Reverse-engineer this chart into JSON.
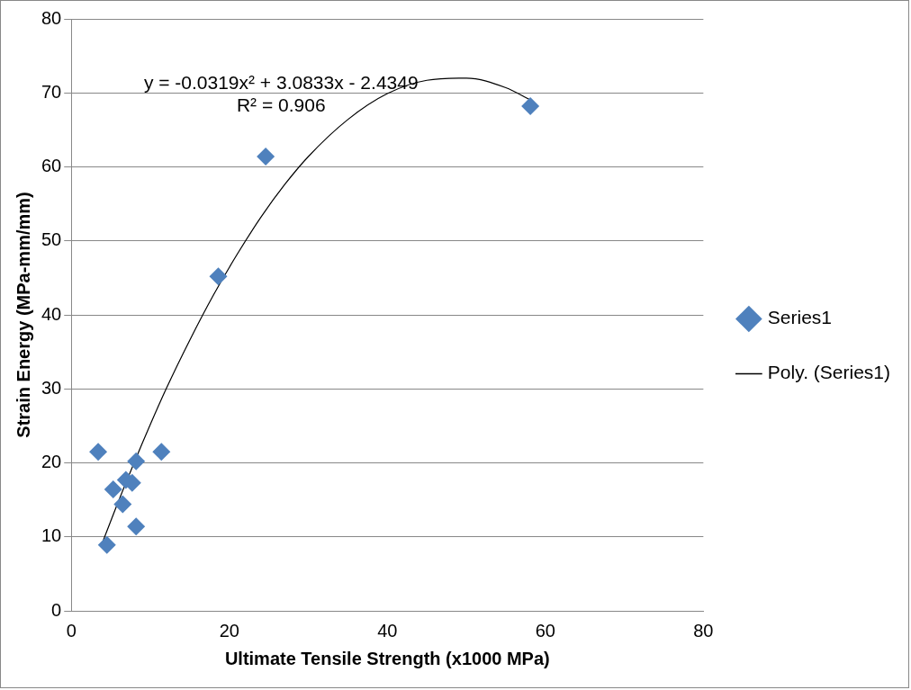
{
  "chart_data": {
    "type": "scatter",
    "xlabel": "Ultimate Tensile Strength (x1000 MPa)",
    "ylabel": "Strain Energy (MPa-mm/mm)",
    "xlim": [
      0,
      80
    ],
    "xticks": [
      0,
      20,
      40,
      60,
      80
    ],
    "ylim": [
      0,
      80
    ],
    "yticks": [
      0,
      10,
      20,
      30,
      40,
      50,
      60,
      70,
      80
    ],
    "grid": "y",
    "legend": "right",
    "marker": "diamond",
    "series": [
      {
        "name": "Series1",
        "color": "#4f81bd",
        "x": [
          3.4,
          11.4,
          8.2,
          6.9,
          7.7,
          5.3,
          6.5,
          8.2,
          4.5,
          18.6,
          24.6,
          58.1
        ],
        "values": [
          21.5,
          21.5,
          20.2,
          17.7,
          17.3,
          16.4,
          14.4,
          11.4,
          8.9,
          45.2,
          61.4,
          68.2
        ]
      },
      {
        "name": "Poly. (Series1)",
        "type": "line",
        "color": "#000000",
        "marker": "none",
        "line_style": "solid",
        "x": [
          4,
          6,
          9,
          10,
          12,
          15,
          18,
          21,
          24,
          27,
          30,
          35,
          40,
          45,
          50,
          55,
          58
        ],
        "values": [
          9.4,
          14.9,
          22.7,
          25.2,
          30.0,
          36.6,
          42.7,
          48.2,
          53.2,
          57.6,
          61.4,
          66.4,
          69.9,
          71.7,
          72.0,
          70.7,
          69.1
        ]
      }
    ],
    "annotations": [
      "y = -0.0319x² + 3.0833x - 2.4349",
      "R² = 0.906"
    ]
  }
}
